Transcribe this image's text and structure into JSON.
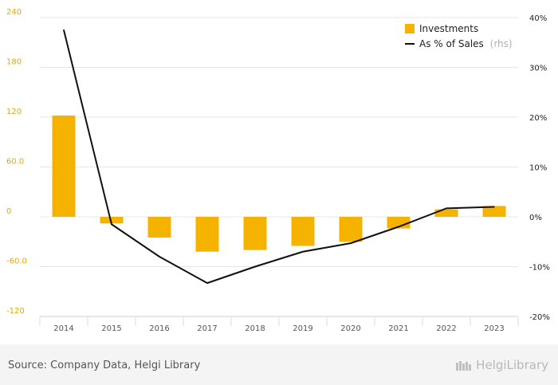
{
  "chart_data": {
    "type": "bar",
    "categories": [
      "2014",
      "2015",
      "2016",
      "2017",
      "2018",
      "2019",
      "2020",
      "2021",
      "2022",
      "2023"
    ],
    "series": [
      {
        "name": "Investments",
        "type": "bar",
        "axis": "left",
        "color": "#f5b300",
        "values": [
          122,
          -8,
          -25,
          -42,
          -40,
          -35,
          -30,
          -14,
          9,
          13
        ]
      },
      {
        "name": "As % of Sales",
        "suffix": "(rhs)",
        "type": "line",
        "axis": "right",
        "color": "#111111",
        "values": [
          37.5,
          -1.5,
          -8,
          -13.3,
          -10,
          -7,
          -5.3,
          -2,
          1.7,
          2
        ]
      }
    ],
    "y_left": {
      "min": -120,
      "max": 240,
      "ticks": [
        240,
        180,
        120,
        60,
        0,
        -60,
        -120
      ],
      "tick_labels": [
        "240",
        "180",
        "120",
        "60.0",
        "0",
        "-60.0",
        "-120"
      ]
    },
    "y_right": {
      "min": -20,
      "max": 40,
      "ticks": [
        40,
        30,
        20,
        10,
        0,
        -10,
        -20
      ],
      "tick_labels": [
        "40%",
        "30%",
        "20%",
        "10%",
        "0%",
        "-10%",
        "-20%"
      ]
    },
    "legend_position": "top-right",
    "grid": true
  },
  "footer": {
    "source": "Source: Company Data, Helgi Library",
    "brand": "HelgiLibrary"
  }
}
